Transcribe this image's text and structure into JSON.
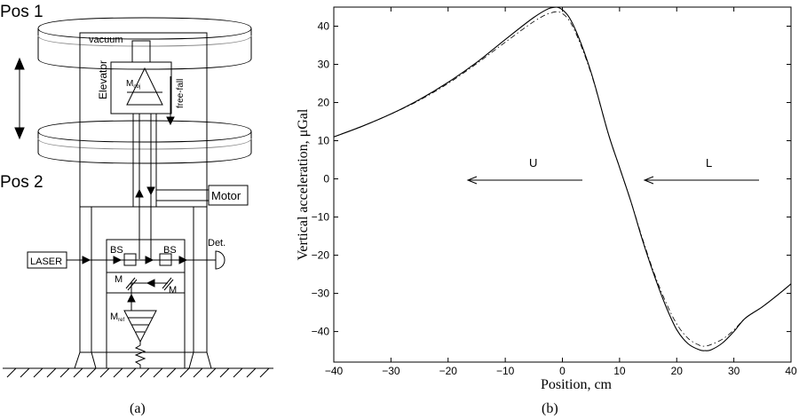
{
  "panel_a": {
    "caption": "(a)",
    "labels": {
      "pos1": "Pos 1",
      "pos2": "Pos 2",
      "vacuum": "vacuum",
      "elevator": "Elevator",
      "mobj": "M",
      "mobj_sub": "obj",
      "freefall": "free-fall",
      "motor": "Motor",
      "laser": "LASER",
      "bs1": "BS",
      "bs2": "BS",
      "det": "Det.",
      "m1": "M",
      "m2": "M",
      "mref": "M",
      "mref_sub": "ref"
    }
  },
  "panel_b": {
    "caption": "(b)",
    "annotation_u": "U",
    "annotation_l": "L"
  },
  "chart_data": {
    "type": "line",
    "xlabel": "Position, cm",
    "ylabel": "Vertical acceleration, μGal",
    "xlim": [
      -40,
      40
    ],
    "ylim": [
      -48,
      45
    ],
    "xticks": [
      -40,
      -30,
      -20,
      -10,
      0,
      10,
      20,
      30,
      40
    ],
    "yticks": [
      -40,
      -30,
      -20,
      -10,
      0,
      10,
      20,
      30,
      40
    ],
    "grid": false,
    "series": [
      {
        "style": "solid",
        "x": [
          -40,
          -35,
          -30,
          -25,
          -20,
          -15,
          -10,
          -5,
          -2,
          0,
          2,
          5,
          8,
          10,
          12,
          14,
          16,
          18,
          20,
          22,
          24,
          25,
          26,
          28,
          30,
          32,
          35,
          38,
          40
        ],
        "y": [
          11,
          13.8,
          17,
          20.8,
          25.3,
          30.5,
          36.5,
          42.3,
          44.8,
          44.3,
          40,
          28,
          12,
          3,
          -6,
          -16,
          -25,
          -33,
          -39.5,
          -43.2,
          -44.8,
          -45,
          -44.8,
          -43,
          -40,
          -36.5,
          -33.5,
          -30,
          -27.5
        ]
      },
      {
        "style": "dashdot",
        "x": [
          -40,
          -35,
          -30,
          -25,
          -20,
          -15,
          -10,
          -5,
          -2,
          0,
          2,
          5,
          8,
          10,
          12,
          14,
          16,
          18,
          20,
          22,
          24,
          25,
          26,
          28,
          30,
          32,
          35,
          38,
          40
        ],
        "y": [
          11,
          13.8,
          17,
          20.6,
          25,
          30.2,
          35.8,
          41.2,
          43.5,
          43.3,
          39.3,
          27.7,
          12,
          3,
          -6,
          -15.6,
          -24.5,
          -32,
          -38,
          -41.8,
          -43.6,
          -43.8,
          -43.4,
          -42,
          -39.6,
          -36.5,
          -33.5,
          -30,
          -27.5
        ]
      }
    ]
  }
}
